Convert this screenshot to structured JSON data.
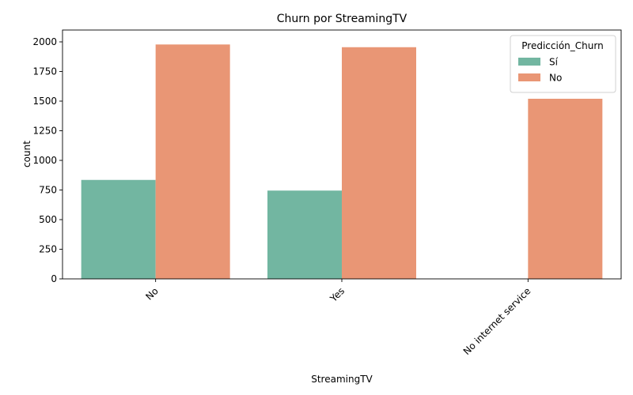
{
  "chart_data": {
    "type": "bar",
    "title": "Churn por StreamingTV",
    "xlabel": "StreamingTV",
    "ylabel": "count",
    "categories": [
      "No",
      "Yes",
      "No internet service"
    ],
    "ylim": [
      0,
      2100
    ],
    "yticks": [
      0,
      250,
      500,
      750,
      1000,
      1250,
      1500,
      1750,
      2000
    ],
    "grid": false,
    "legend": {
      "title": "Predicción_Churn",
      "placement": "top-right"
    },
    "series": [
      {
        "name": "Sí",
        "color": "#72b6a1",
        "values": [
          835,
          745,
          0
        ]
      },
      {
        "name": "No",
        "color": "#e99675",
        "values": [
          1978,
          1955,
          1520
        ]
      }
    ]
  }
}
